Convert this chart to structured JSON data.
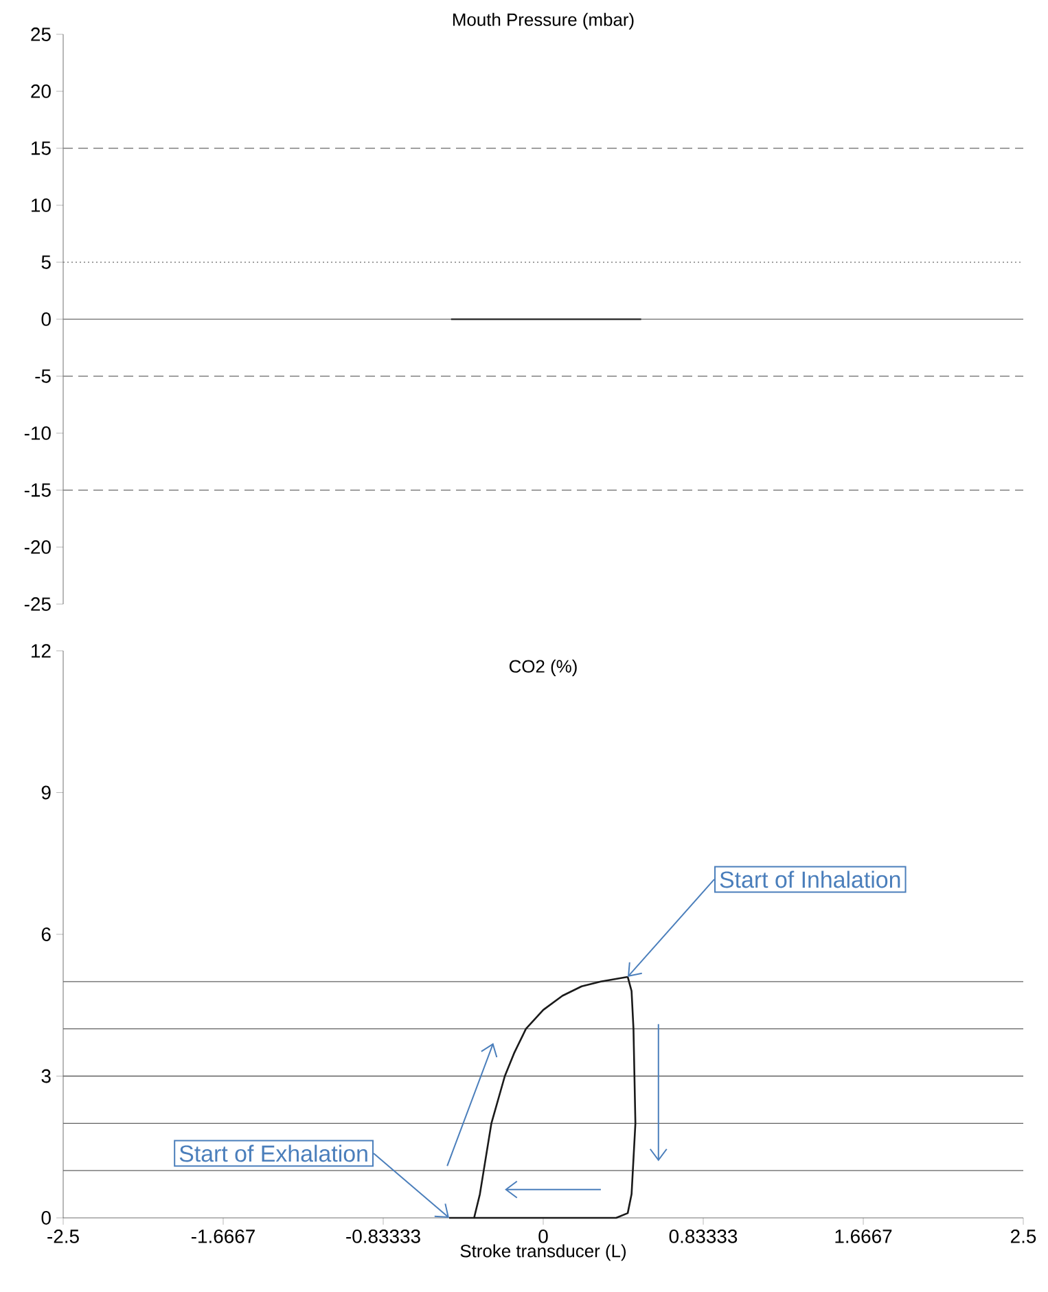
{
  "chart_data": [
    {
      "type": "line",
      "title": "Mouth Pressure (mbar)",
      "xlim": [
        -2.5,
        2.5
      ],
      "ylim": [
        -25,
        25
      ],
      "yticks": [
        -25,
        -20,
        -15,
        -10,
        -5,
        0,
        5,
        10,
        15,
        20,
        25
      ],
      "tick_labels": "y",
      "series": [
        {
          "color": "#333333",
          "x": [
            -0.48,
            0.51
          ],
          "values": [
            0,
            0
          ]
        }
      ],
      "ref_lines": [
        {
          "axis": "y",
          "value": 15,
          "color": "#808080",
          "line_style": "dashed"
        },
        {
          "axis": "y",
          "value": 5,
          "color": "#808080",
          "line_style": "dotted"
        },
        {
          "axis": "y",
          "value": 0,
          "color": "#808080",
          "line_style": "solid"
        },
        {
          "axis": "y",
          "value": -5,
          "color": "#808080",
          "line_style": "dashed"
        },
        {
          "axis": "y",
          "value": -15,
          "color": "#808080",
          "line_style": "dashed"
        }
      ]
    },
    {
      "type": "line",
      "title": "CO2 (%)",
      "xlabel": "Stroke transducer (L)",
      "xlim": [
        -2.5,
        2.5
      ],
      "ylim": [
        0,
        12
      ],
      "xticks": [
        -2.5,
        -1.6667,
        -0.83333,
        0,
        0.83333,
        1.6667,
        2.5
      ],
      "yticks": [
        0,
        3,
        6,
        9,
        12
      ],
      "series": [
        {
          "color": "#1a1a1a",
          "x": [
            -0.49,
            -0.36,
            -0.33,
            -0.31,
            -0.27,
            -0.2,
            -0.15,
            -0.09,
            0.0,
            0.1,
            0.2,
            0.3,
            0.44
          ],
          "values": [
            0,
            0,
            0.5,
            1,
            2,
            3,
            3.5,
            4,
            4.4,
            4.7,
            4.9,
            5.0,
            5.1
          ]
        },
        {
          "color": "#1a1a1a",
          "x": [
            0.44,
            0.46,
            0.47,
            0.48,
            0.46,
            0.44,
            0.38,
            0.1,
            -0.2,
            -0.36
          ],
          "values": [
            5.1,
            4.8,
            4,
            2,
            0.5,
            0.1,
            0,
            0,
            0,
            0
          ]
        }
      ],
      "ref_lines": [
        {
          "axis": "y",
          "value": 5,
          "color": "#606060",
          "line_style": "solid"
        },
        {
          "axis": "y",
          "value": 4,
          "color": "#606060",
          "line_style": "solid"
        },
        {
          "axis": "y",
          "value": 3,
          "color": "#606060",
          "line_style": "solid"
        },
        {
          "axis": "y",
          "value": 2,
          "color": "#606060",
          "line_style": "solid"
        },
        {
          "axis": "y",
          "value": 1,
          "color": "#606060",
          "line_style": "solid"
        }
      ],
      "annotations": [
        {
          "text": "Start of Inhalation",
          "x": 0.44,
          "y": 5.1
        },
        {
          "text": "Start of Exhalation",
          "x": -0.49,
          "y": 0
        }
      ]
    }
  ]
}
